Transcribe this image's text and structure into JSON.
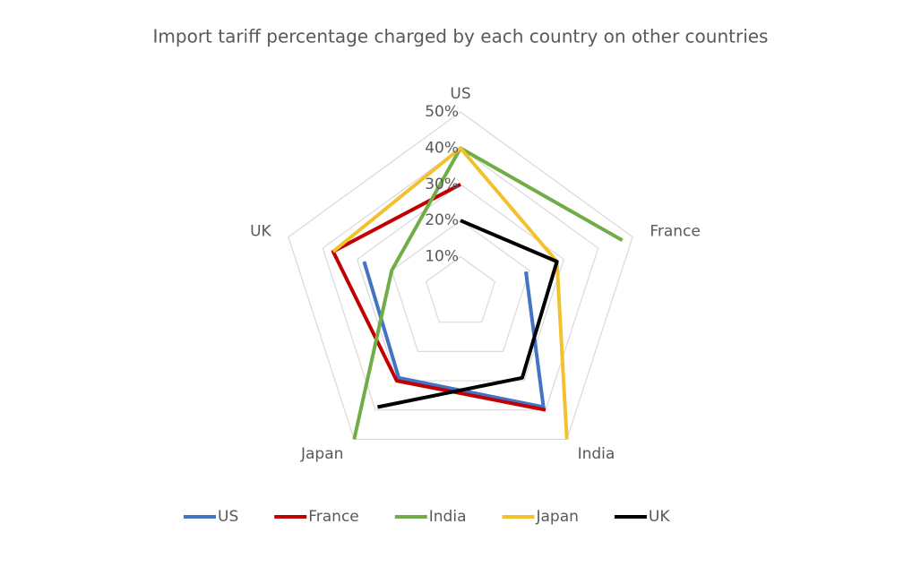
{
  "chart_data": {
    "type": "radar",
    "title": "Import tariff percentage charged by each country on other countries",
    "categories": [
      "US",
      "France",
      "India",
      "Japan",
      "UK"
    ],
    "series": [
      {
        "name": "US",
        "color": "#4472c4",
        "values": [
          null,
          19,
          39,
          29,
          28
        ]
      },
      {
        "name": "France",
        "color": "#c00000",
        "values": [
          30,
          null,
          40,
          30,
          37
        ]
      },
      {
        "name": "India",
        "color": "#70ad47",
        "values": [
          40,
          47,
          null,
          50,
          20
        ]
      },
      {
        "name": "Japan",
        "color": "#f2c12e",
        "values": [
          40,
          28,
          50,
          null,
          37
        ]
      },
      {
        "name": "UK",
        "color": "#000000",
        "values": [
          20,
          28,
          29,
          39,
          null
        ]
      }
    ],
    "rlim": [
      0,
      50
    ],
    "rticks": [
      {
        "value": 10,
        "label": "10%"
      },
      {
        "value": 20,
        "label": "20%"
      },
      {
        "value": 30,
        "label": "30%"
      },
      {
        "value": 40,
        "label": "40%"
      },
      {
        "value": 50,
        "label": "50%"
      }
    ],
    "grid": true,
    "legend": "bottom"
  }
}
